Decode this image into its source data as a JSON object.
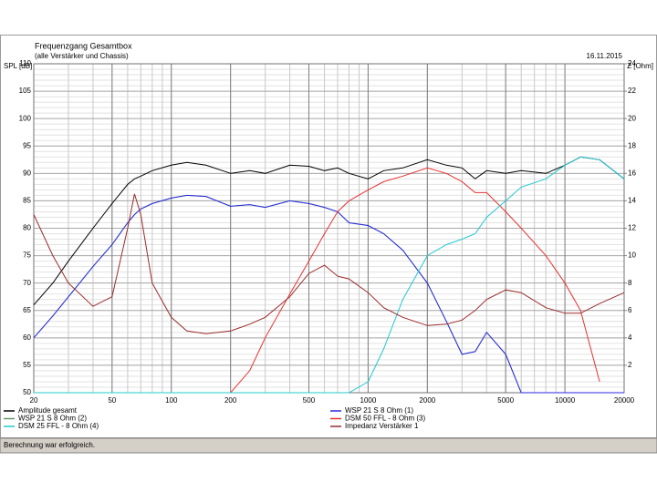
{
  "chart_data": {
    "type": "line",
    "title": "Frequenzgang Gesamtbox",
    "subtitle": "(alle Verstärker und Chassis)",
    "date": "16.11.2015",
    "ylabel": "SPL [dB]",
    "y2label": "Z [Ohm]",
    "status": "Berechnung war erfolgreich.",
    "xscale": "log",
    "grid": true,
    "legend": "bottom",
    "xlim": [
      20,
      20000
    ],
    "xticks": [
      20,
      50,
      100,
      200,
      500,
      1000,
      2000,
      5000,
      10000,
      20000
    ],
    "ylim": [
      50,
      110
    ],
    "yticks": [
      50,
      55,
      60,
      65,
      70,
      75,
      80,
      85,
      90,
      95,
      100,
      105,
      110
    ],
    "y2lim": [
      0,
      24
    ],
    "y2ticks": [
      2,
      4,
      6,
      8,
      10,
      12,
      14,
      16,
      18,
      20,
      22,
      24
    ],
    "x": [
      20,
      25,
      30,
      40,
      50,
      60,
      65,
      70,
      80,
      100,
      120,
      150,
      200,
      250,
      300,
      400,
      500,
      600,
      700,
      800,
      1000,
      1200,
      1500,
      2000,
      2500,
      3000,
      3500,
      4000,
      5000,
      6000,
      8000,
      10000,
      12000,
      15000,
      20000
    ],
    "series": [
      {
        "name": "WSP 21 S 8 Ohm (2)",
        "color": "#5f9a6a",
        "values": [
          60,
          64,
          67.5,
          73,
          77,
          81,
          82.5,
          83.5,
          84.5,
          85.5,
          86,
          85.8,
          84,
          84.3,
          83.8,
          85,
          84.5,
          83.8,
          83,
          81,
          80.5,
          79,
          76,
          70,
          63,
          57,
          57.5,
          61,
          57,
          50,
          50,
          50,
          50,
          50,
          50
        ]
      },
      {
        "name": "Amplitude gesamt",
        "color": "#000000",
        "values": [
          66,
          70,
          74,
          80,
          84.5,
          88,
          89,
          89.5,
          90.5,
          91.5,
          92,
          91.5,
          90,
          90.5,
          90,
          91.5,
          91.3,
          90.5,
          91,
          90,
          89,
          90.5,
          91,
          92.5,
          91.5,
          91,
          89,
          90.5,
          90,
          90.5,
          90,
          91.5,
          93,
          92.5,
          89
        ]
      },
      {
        "name": "WSP 21 S 8 Ohm (1)",
        "color": "#2a2ae0",
        "values": [
          60,
          64,
          67.5,
          73,
          77,
          81,
          82.5,
          83.5,
          84.5,
          85.5,
          86,
          85.8,
          84,
          84.3,
          83.8,
          85,
          84.5,
          83.8,
          83,
          81,
          80.5,
          79,
          76,
          70,
          63,
          57,
          57.5,
          61,
          57,
          50,
          50,
          50,
          50,
          50,
          50
        ]
      },
      {
        "name": "DSM 50 FFL - 8 Ohm (3)",
        "color": "#e83030",
        "values": [
          50,
          50,
          50,
          50,
          50,
          50,
          50,
          50,
          50,
          50,
          50,
          50,
          50,
          54,
          60,
          68,
          74,
          79,
          83,
          85,
          87,
          88.5,
          89.5,
          91,
          90,
          88.5,
          86.5,
          86.5,
          83,
          80,
          75,
          70,
          65,
          52,
          null
        ]
      },
      {
        "name": "DSM 25 FFL - 8 Ohm (4)",
        "color": "#20c8d0",
        "values": [
          50,
          50,
          50,
          50,
          50,
          50,
          50,
          50,
          50,
          50,
          50,
          50,
          50,
          50,
          50,
          50,
          50,
          50,
          50,
          50,
          52,
          58,
          67,
          75,
          77,
          78,
          79,
          82,
          85,
          87.5,
          89,
          91.5,
          93,
          92.5,
          89
        ]
      },
      {
        "name": "Impedanz Verstärker 1",
        "color": "#9a2a2a",
        "axis": "y2",
        "values": [
          13,
          10,
          8,
          6.3,
          7,
          12,
          14.5,
          13,
          8,
          5.5,
          4.5,
          4.3,
          4.5,
          5,
          5.5,
          7,
          8.7,
          9.3,
          8.5,
          8.3,
          7.3,
          6.2,
          5.5,
          4.9,
          5,
          5.3,
          6,
          6.8,
          7.5,
          7.3,
          6.2,
          5.8,
          5.8,
          6.5,
          7.3
        ]
      }
    ]
  }
}
